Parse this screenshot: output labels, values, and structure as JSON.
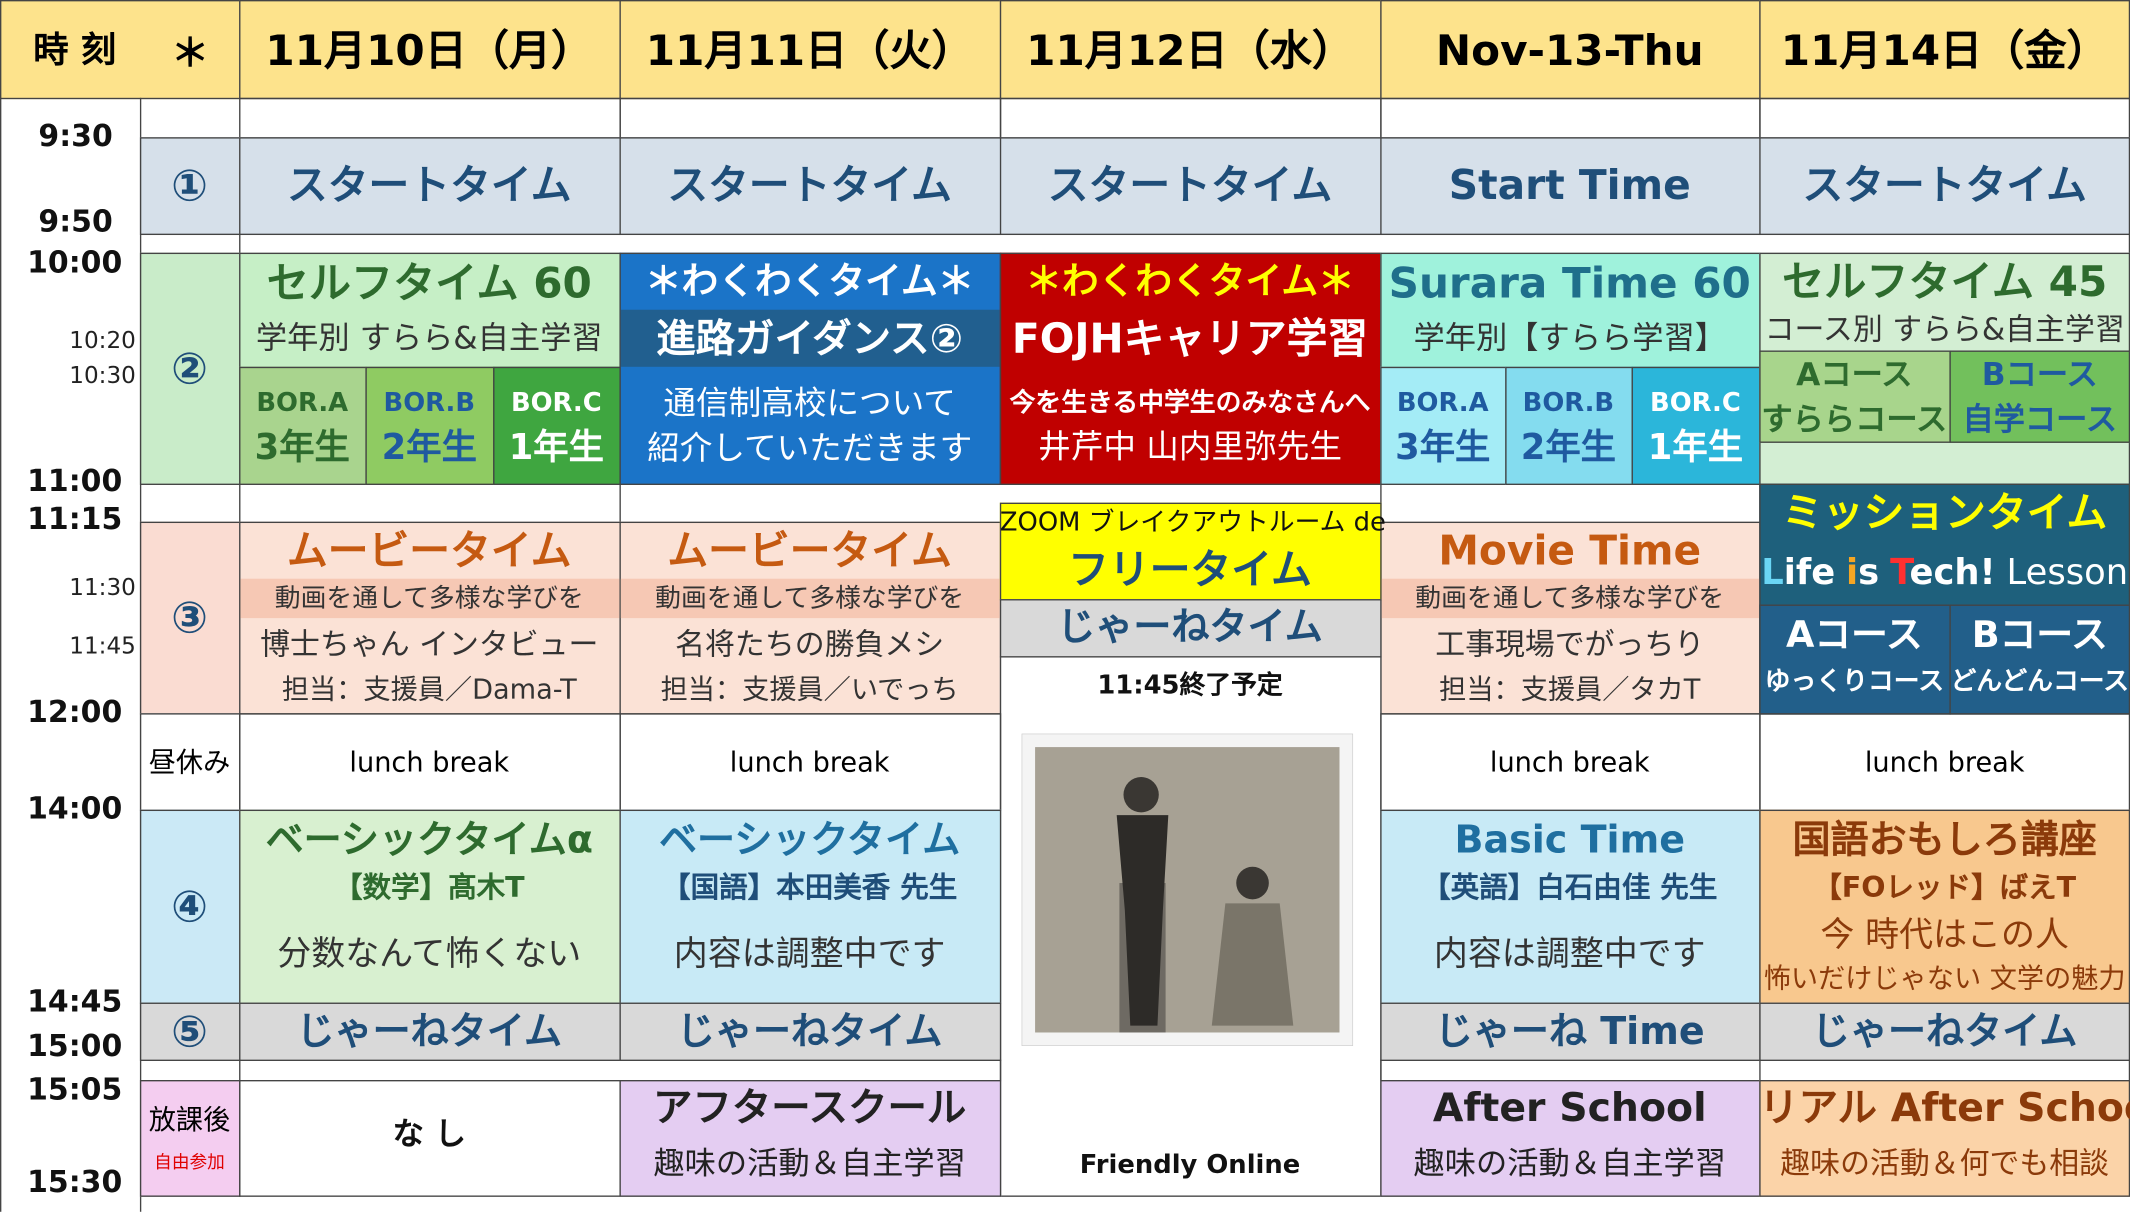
{
  "header": {
    "time": "時 刻",
    "mark": "＊",
    "days": [
      "11月10日（月）",
      "11月11日（火）",
      "11月12日（水）",
      "Nov-13-Thu",
      "11月14日（金）"
    ]
  },
  "times": [
    "9:30",
    "9:50",
    "10:00",
    "10:20",
    "10:30",
    "11:00",
    "11:15",
    "11:30",
    "11:45",
    "12:00",
    "14:00",
    "14:45",
    "15:00",
    "15:05",
    "15:30"
  ],
  "periods": {
    "p1": "①",
    "p2": "②",
    "p3": "③",
    "lunch": "昼休み",
    "p4": "④",
    "p5": "⑤",
    "after": "放課後",
    "after_note": "自由参加"
  },
  "start_time": [
    "スタートタイム",
    "スタートタイム",
    "スタートタイム",
    "Start Time",
    "スタートタイム"
  ],
  "period2": {
    "mon": {
      "title": "セルフタイム 60",
      "sub": "学年別 すらら&自主学習",
      "groups": [
        {
          "room": "BOR.A",
          "grade": "3年生"
        },
        {
          "room": "BOR.B",
          "grade": "2年生"
        },
        {
          "room": "BOR.C",
          "grade": "1年生"
        }
      ]
    },
    "tue": {
      "title": "＊わくわくタイム＊",
      "sub": "進路ガイダンス②",
      "lines": [
        "通信制高校について",
        "紹介していただきます"
      ]
    },
    "wed": {
      "title": "＊わくわくタイム＊",
      "sub": "FOJHキャリア学習",
      "lines": [
        "今を生きる中学生のみなさんへ",
        "井芹中 山内里弥先生"
      ]
    },
    "thu": {
      "title": "Surara Time 60",
      "sub": "学年別【すらら学習】",
      "groups": [
        {
          "room": "BOR.A",
          "grade": "3年生"
        },
        {
          "room": "BOR.B",
          "grade": "2年生"
        },
        {
          "room": "BOR.C",
          "grade": "1年生"
        }
      ]
    },
    "fri": {
      "title": "セルフタイム 45",
      "sub": "コース別 すらら&自主学習",
      "groups": [
        {
          "room": "Aコース",
          "grade": "すららコース"
        },
        {
          "room": "Bコース",
          "grade": "自学コース"
        }
      ]
    }
  },
  "period3": {
    "mon": {
      "title": "ムービータイム",
      "sub": "動画を通して多様な学びを",
      "lines": [
        "博士ちゃん インタビュー",
        "担当：支援員／Dama-T"
      ]
    },
    "tue": {
      "title": "ムービータイム",
      "sub": "動画を通して多様な学びを",
      "lines": [
        "名将たちの勝負メシ",
        "担当：支援員／いでっち"
      ]
    },
    "wed": {
      "top": "ZOOM ブレイクアウトルーム de",
      "title": "フリータイム",
      "sub": "じゃーねタイム",
      "note": "11:45終了予定",
      "footer": "Friendly Online"
    },
    "thu": {
      "title": "Movie Time",
      "sub": "動画を通して多様な学びを",
      "lines": [
        "工事現場でがっちり",
        "担当：支援員／タカT"
      ]
    },
    "fri": {
      "title": "ミッションタイム",
      "lesson": [
        "L",
        "ife",
        "i",
        "s",
        "T",
        "ech!",
        "Lesson"
      ],
      "groups": [
        {
          "room": "Aコース",
          "grade": "ゆっくりコース"
        },
        {
          "room": "Bコース",
          "grade": "どんどんコース"
        }
      ]
    }
  },
  "lunch": {
    "mon": "lunch break",
    "tue": "lunch break",
    "thu": "lunch break",
    "fri": "lunch break"
  },
  "period4": {
    "mon": {
      "title": "ベーシックタイムα",
      "sub": "【数学】髙木T",
      "lines": [
        "分数なんて怖くない"
      ]
    },
    "tue": {
      "title": "ベーシックタイム",
      "sub": "【国語】本田美香 先生",
      "lines": [
        "内容は調整中です"
      ]
    },
    "thu": {
      "title": "Basic Time",
      "sub": "【英語】白石由佳 先生",
      "lines": [
        "内容は調整中です"
      ]
    },
    "fri": {
      "title": "国語おもしろ講座",
      "sub": "【FOレッド】ばえT",
      "lines": [
        "今 時代はこの人",
        "怖いだけじゃない 文学の魅力"
      ]
    }
  },
  "period5": {
    "mon": "じゃーねタイム",
    "tue": "じゃーねタイム",
    "thu": "じゃーね Time",
    "fri": "じゃーねタイム"
  },
  "after": {
    "mon": {
      "title": "な し"
    },
    "tue": {
      "title": "アフタースクール",
      "line": "趣味の活動＆自主学習"
    },
    "thu": {
      "title": "After School",
      "line": "趣味の活動＆自主学習"
    },
    "fri": {
      "title": "リアル After School",
      "line": "趣味の活動＆何でも相談"
    }
  }
}
